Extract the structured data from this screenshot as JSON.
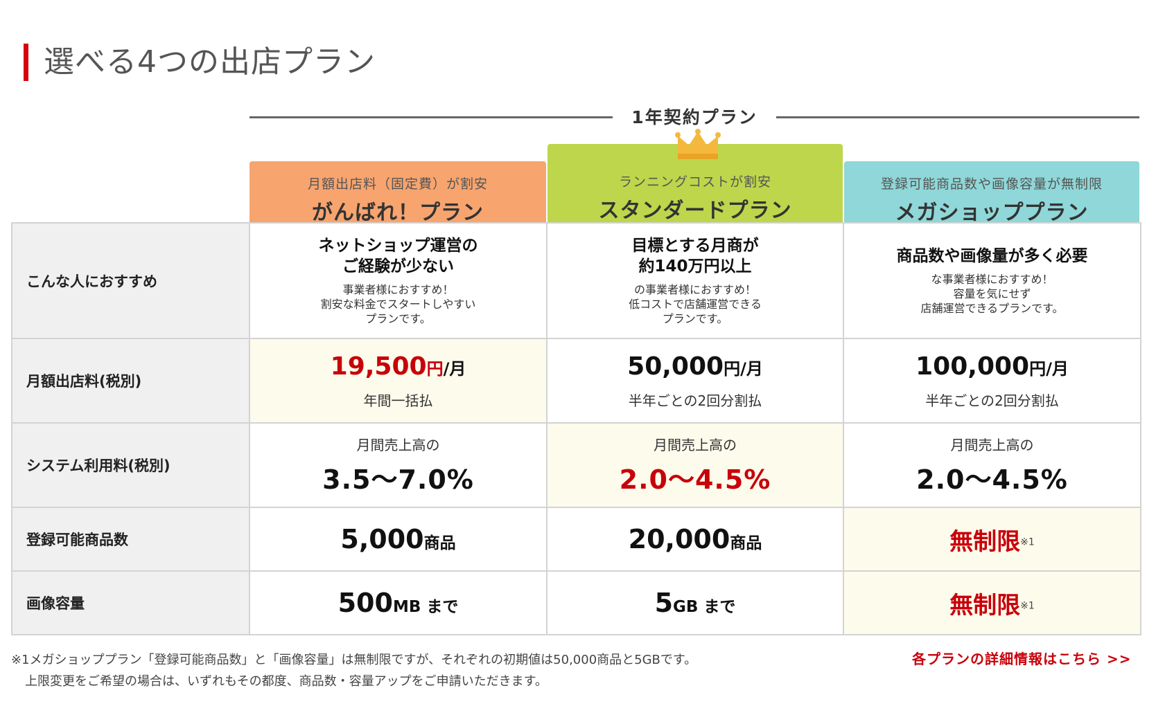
{
  "page_title": "選べる4つの出店プラン",
  "contract_label": "1年契約プラン",
  "plans": [
    {
      "tagline": "月額出店料（固定費）が割安",
      "name": "がんばれ！プラン"
    },
    {
      "tagline": "ランニングコストが割安",
      "name": "スタンダードプラン"
    },
    {
      "tagline": "登録可能商品数や画像容量が無制限",
      "name": "メガショッププラン"
    }
  ],
  "rows": {
    "recommend": {
      "label": "こんな人におすすめ",
      "cells": [
        {
          "head": [
            "ネットショップ運営の",
            "ご経験が少ない"
          ],
          "body": [
            "事業者様におすすめ！",
            "割安な料金でスタートしやすい",
            "プランです。"
          ]
        },
        {
          "head": [
            "目標とする月商が",
            "約140万円以上"
          ],
          "body": [
            "の事業者様におすすめ！",
            "低コストで店舗運営できる",
            "プランです。"
          ]
        },
        {
          "head": [
            "商品数や画像量が多く必要"
          ],
          "body": [
            "な事業者様におすすめ！",
            "容量を気にせず",
            "店舗運営できるプランです。"
          ]
        }
      ]
    },
    "monthly_fee": {
      "label": "月額出店料(税別)",
      "cells": [
        {
          "amount": "19,500",
          "yen": "円",
          "per": "/月",
          "note": "年間一括払"
        },
        {
          "amount": "50,000",
          "yen": "円",
          "per": "/月",
          "note": "半年ごとの2回分割払"
        },
        {
          "amount": "100,000",
          "yen": "円",
          "per": "/月",
          "note": "半年ごとの2回分割払"
        }
      ]
    },
    "system_fee": {
      "label": "システム利用料(税別)",
      "cells": [
        {
          "pre": "月間売上高の",
          "value": "3.5〜7.0%"
        },
        {
          "pre": "月間売上高の",
          "value": "2.0〜4.5%"
        },
        {
          "pre": "月間売上高の",
          "value": "2.0〜4.5%"
        }
      ]
    },
    "product_count": {
      "label": "登録可能商品数",
      "cells": [
        {
          "value": "5,000",
          "unit": "商品"
        },
        {
          "value": "20,000",
          "unit": "商品"
        },
        {
          "value": "無制限",
          "mark": "※1"
        }
      ]
    },
    "image_capacity": {
      "label": "画像容量",
      "cells": [
        {
          "value": "500",
          "unit": "MB まで"
        },
        {
          "value": "5",
          "unit": "GB まで"
        },
        {
          "value": "無制限",
          "mark": "※1"
        }
      ]
    }
  },
  "footnote": {
    "line1": "※1メガショッププラン「登録可能商品数」と「画像容量」は無制限ですが、それぞれの初期値は50,000商品と5GBです。",
    "line2": "上限変更をご希望の場合は、いずれもその都度、商品数・容量アップをご申請いただきます。"
  },
  "detail_link": "各プランの詳細情報はこちら >>",
  "colors": {
    "accent_red": "#c8000a",
    "plan1": "#f7a46f",
    "plan2": "#bdd64b",
    "plan3": "#8fd7d8",
    "highlight": "#fdfbec"
  },
  "icons": {
    "crown": "crown-icon"
  }
}
